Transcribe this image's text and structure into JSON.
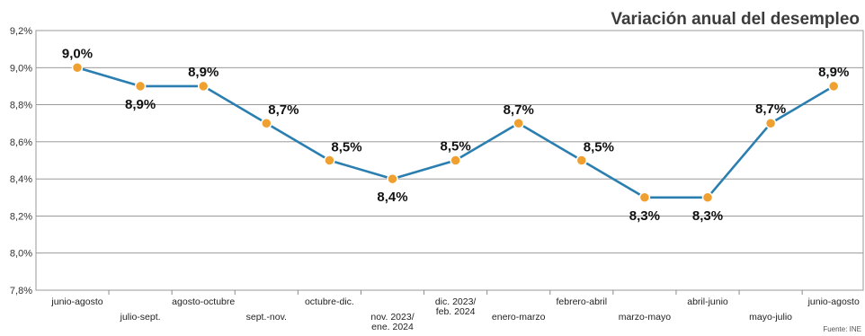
{
  "chart_data": {
    "type": "line",
    "title": "Variación anual del desempleo",
    "source": "Fuente: INE",
    "categories": [
      "junio-agosto",
      "julio-sept.",
      "agosto-octubre",
      "sept.-nov.",
      "octubre-dic.",
      "nov. 2023/ ene. 2024",
      "dic. 2023/ feb. 2024",
      "enero-marzo",
      "febrero-abril",
      "marzo-mayo",
      "abril-junio",
      "mayo-julio",
      "junio-agosto"
    ],
    "values": [
      9.0,
      8.9,
      8.9,
      8.7,
      8.5,
      8.4,
      8.5,
      8.7,
      8.5,
      8.3,
      8.3,
      8.7,
      8.9
    ],
    "data_labels": [
      "9,0%",
      "8,9%",
      "8,9%",
      "8,7%",
      "8,5%",
      "8,4%",
      "8,5%",
      "8,7%",
      "8,5%",
      "8,3%",
      "8,3%",
      "8,7%",
      "8,9%"
    ],
    "ylim": [
      7.8,
      9.2
    ],
    "yticks": [
      "7,8%",
      "8,0%",
      "8,2%",
      "8,4%",
      "8,6%",
      "8,8%",
      "9,0%",
      "9,2%"
    ],
    "grid": true,
    "colors": {
      "line": "#2a7fb0",
      "marker": "#f0a030",
      "gridline": "#8c8c8c",
      "panel_border": "#9a9a9a",
      "title": "#3c3c3c"
    }
  }
}
